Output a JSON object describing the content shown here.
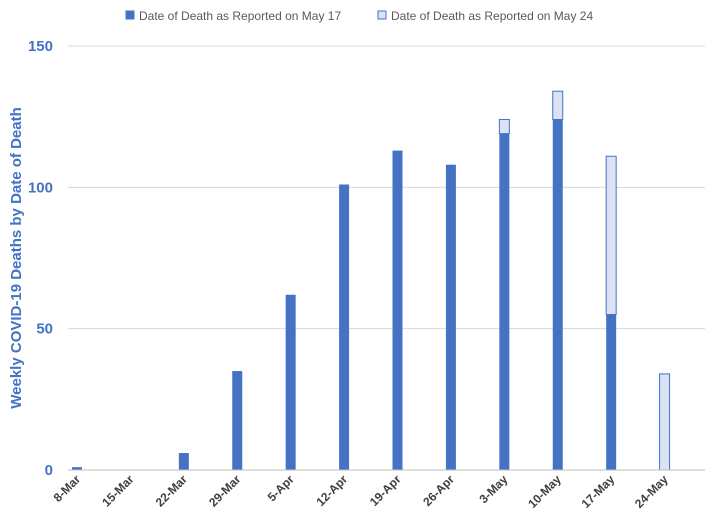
{
  "chart_data": {
    "type": "bar",
    "stacked": true,
    "title": "",
    "xlabel": "",
    "ylabel": "Weekly COVID-19 Deaths by Date of Death",
    "ylim": [
      0,
      150
    ],
    "yticks": [
      0,
      50,
      100,
      150
    ],
    "grid": true,
    "legend_position": "top",
    "categories": [
      "8-Mar",
      "15-Mar",
      "22-Mar",
      "29-Mar",
      "5-Apr",
      "12-Apr",
      "19-Apr",
      "26-Apr",
      "3-May",
      "10-May",
      "17-May",
      "24-May"
    ],
    "series": [
      {
        "name": "Date of Death as Reported on May 17",
        "color": "#4472c4",
        "values": [
          1,
          0,
          6,
          35,
          62,
          101,
          113,
          108,
          119,
          124,
          55,
          0
        ]
      },
      {
        "name": "Date of Death as Reported on May 24",
        "color": "#dae3f3",
        "border_color": "#4472c4",
        "values": [
          0,
          0,
          0,
          0,
          0,
          0,
          0,
          0,
          5,
          10,
          56,
          34
        ]
      }
    ]
  }
}
